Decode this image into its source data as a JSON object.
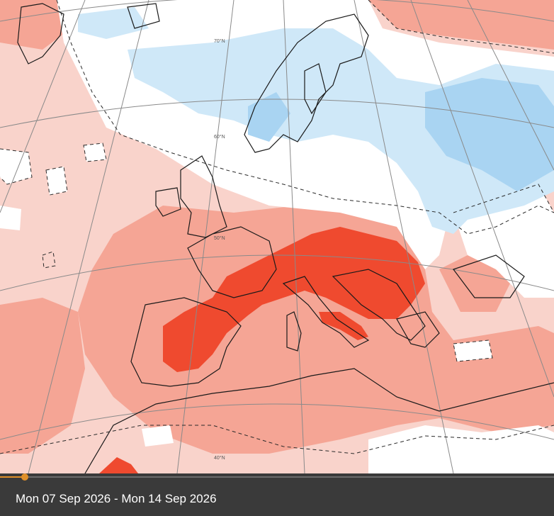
{
  "caption": "Mon 07 Sep 2026 - Mon 14 Sep 2026",
  "timeline": {
    "progress": 0.045
  },
  "graticule_labels": [
    "70°N",
    "60°N",
    "50°N",
    "40°N"
  ],
  "colors": {
    "warm_light": "#f9d3cb",
    "warm_medium": "#f5a595",
    "warm_strong": "#ef4a2f",
    "neutral": "#ffffff",
    "cool_light": "#cfe8f8",
    "cool_medium": "#a9d4f2",
    "accent": "#e0902a",
    "bar": "#3a3a3a"
  }
}
